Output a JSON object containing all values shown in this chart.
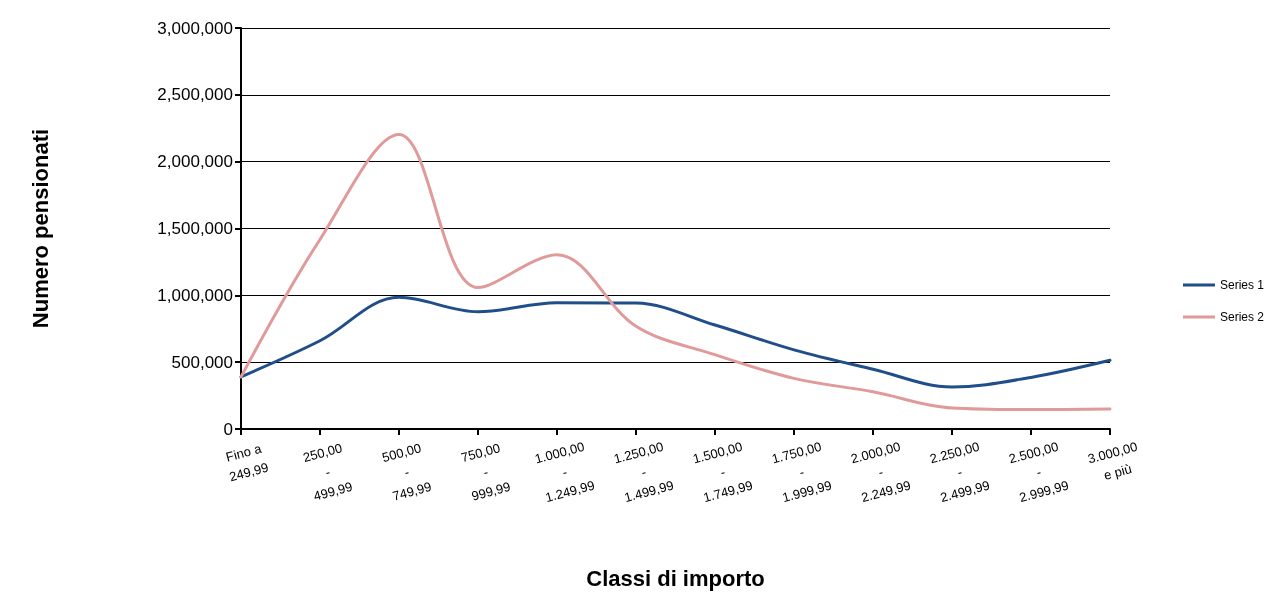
{
  "chart_data": {
    "type": "line",
    "xlabel": "Classi di importo",
    "ylabel": "Numero pensionati",
    "categories": [
      "Fino a\n249,99",
      "250,00\n-\n499,99",
      "500,00\n-\n749,99",
      "750,00\n-\n999,99",
      "1.000,00\n-\n1.249,99",
      "1.250,00\n-\n1.499,99",
      "1.500,00\n-\n1.749,99",
      "1.750,00\n-\n1.999,99",
      "2.000,00\n-\n2.249,99",
      "2.250,00\n-\n2.499,99",
      "2.500,00\n-\n2.999,99",
      "3.000,00\ne più"
    ],
    "series": [
      {
        "name": "Series 1",
        "color": "#1f4e89",
        "values": [
          390000,
          660000,
          985000,
          877000,
          945000,
          942000,
          778000,
          592000,
          447000,
          314000,
          386000,
          514000
        ]
      },
      {
        "name": "Series 2",
        "color": "#e09a9a",
        "values": [
          390000,
          1418000,
          2204000,
          1058000,
          1303000,
          769000,
          556000,
          379000,
          278000,
          157000,
          145000,
          150000
        ]
      }
    ],
    "ylim": [
      0,
      3000000
    ],
    "yticks": [
      0,
      {
        "value": 500000,
        "label": "500,000"
      },
      {
        "value": 1000000,
        "label": "1,000,000"
      },
      {
        "value": 1500000,
        "label": "1,500,000"
      },
      {
        "value": 2000000,
        "label": "2,000,000"
      },
      {
        "value": 2500000,
        "label": "2,500,000"
      },
      {
        "value": 3000000,
        "label": "3,000,000"
      }
    ],
    "grid": "y",
    "legend": "right",
    "marker": "none",
    "line_style": "solid"
  }
}
